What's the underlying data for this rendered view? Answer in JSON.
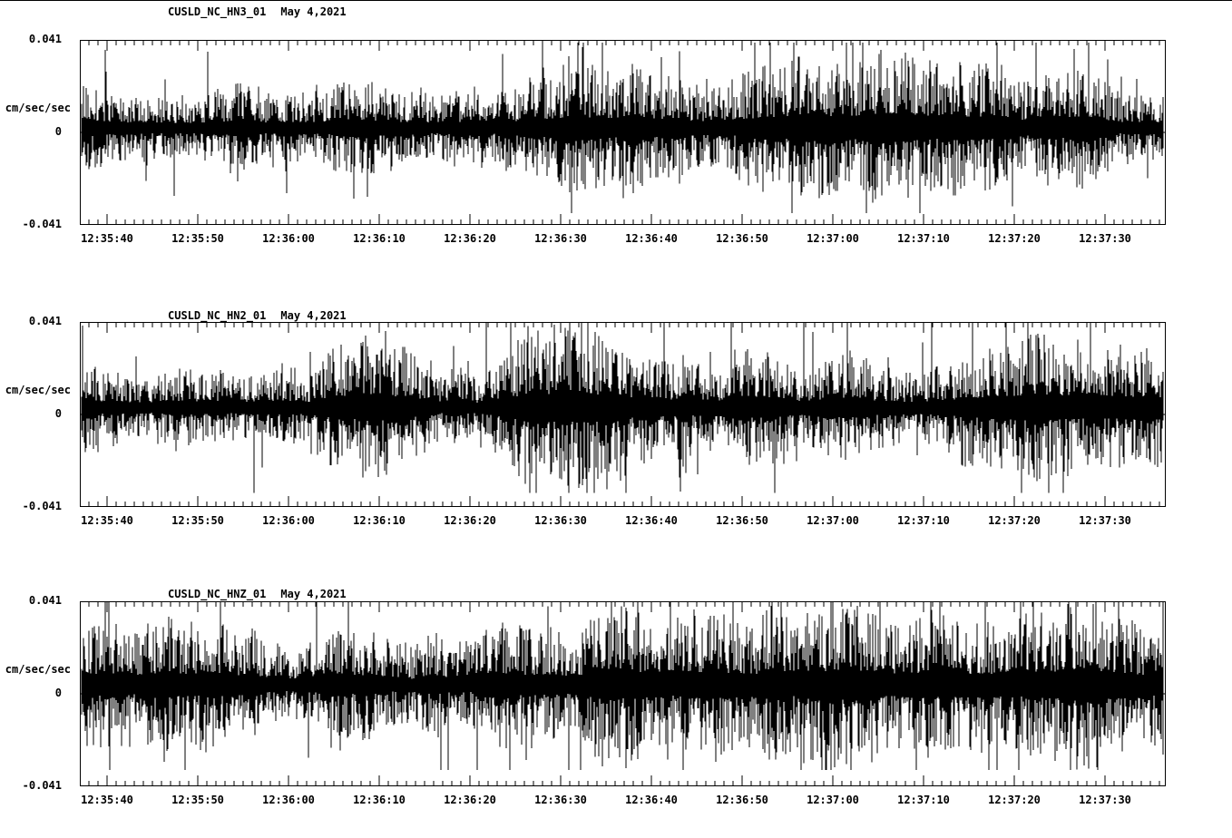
{
  "page": {
    "background": "#ffffff",
    "foreground": "#000000"
  },
  "chart_data": [
    {
      "type": "line",
      "title": "CUSLD_NC_HN3_01  May 4,2021",
      "station": "CUSLD_NC_HN3_01",
      "date": "May 4,2021",
      "ylabel": "cm/sec/sec",
      "ylim": [
        -0.041,
        0.041
      ],
      "ytick_labels": [
        "0.041",
        "0",
        "-0.041"
      ],
      "xtick_labels": [
        "12:35:40",
        "12:35:50",
        "12:36:00",
        "12:36:10",
        "12:36:20",
        "12:36:30",
        "12:36:40",
        "12:36:50",
        "12:37:00",
        "12:37:10",
        "12:37:20",
        "12:37:30"
      ],
      "x_major_interval_seconds": 10,
      "x_minor_interval_seconds": 1,
      "grid": false,
      "legend": false,
      "trace_color": "#000000",
      "trace_description": "continuous high-frequency seismic noise; dense band around 0 with frequent spikes reaching about +/-0.035 cm/sec/sec",
      "noise_seed": 11,
      "noise_amplitude": 0.013,
      "baseline_offset": 0.002
    },
    {
      "type": "line",
      "title": "CUSLD_NC_HN2_01  May 4,2021",
      "station": "CUSLD_NC_HN2_01",
      "date": "May 4,2021",
      "ylabel": "cm/sec/sec",
      "ylim": [
        -0.041,
        0.041
      ],
      "ytick_labels": [
        "0.041",
        "0",
        "-0.041"
      ],
      "xtick_labels": [
        "12:35:40",
        "12:35:50",
        "12:36:00",
        "12:36:10",
        "12:36:20",
        "12:36:30",
        "12:36:40",
        "12:36:50",
        "12:37:00",
        "12:37:10",
        "12:37:20",
        "12:37:30"
      ],
      "x_major_interval_seconds": 10,
      "x_minor_interval_seconds": 1,
      "grid": false,
      "legend": false,
      "trace_color": "#000000",
      "trace_description": "continuous high-frequency seismic noise; dense band slightly above 0 with frequent spikes reaching about +/-0.035 cm/sec/sec",
      "noise_seed": 47,
      "noise_amplitude": 0.0135,
      "baseline_offset": 0.003
    },
    {
      "type": "line",
      "title": "CUSLD_NC_HNZ_01  May 4,2021",
      "station": "CUSLD_NC_HNZ_01",
      "date": "May 4,2021",
      "ylabel": "cm/sec/sec",
      "ylim": [
        -0.041,
        0.041
      ],
      "ytick_labels": [
        "0.041",
        "0",
        "-0.041"
      ],
      "xtick_labels": [
        "12:35:40",
        "12:35:50",
        "12:36:00",
        "12:36:10",
        "12:36:20",
        "12:36:30",
        "12:36:40",
        "12:36:50",
        "12:37:00",
        "12:37:10",
        "12:37:20",
        "12:37:30"
      ],
      "x_major_interval_seconds": 10,
      "x_minor_interval_seconds": 1,
      "grid": false,
      "legend": false,
      "trace_color": "#000000",
      "trace_description": "continuous high-frequency seismic noise; dense band slightly above 0 with frequent spikes reaching about +/-0.037 cm/sec/sec",
      "noise_seed": 83,
      "noise_amplitude": 0.0145,
      "baseline_offset": 0.004
    }
  ]
}
